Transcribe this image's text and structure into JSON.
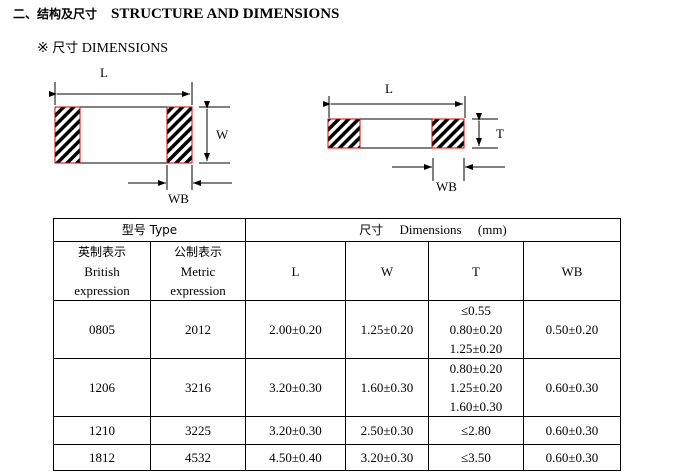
{
  "heading": {
    "zh": "二、结构及尺寸",
    "en": "STRUCTURE AND DIMENSIONS"
  },
  "subheading": {
    "mark": "※",
    "zh": "尺寸",
    "en": "DIMENSIONS"
  },
  "diagram_top": {
    "L": "L",
    "W": "W",
    "WB": "WB"
  },
  "diagram_side": {
    "L": "L",
    "T": "T",
    "WB": "WB"
  },
  "table": {
    "type_header": "型号 Type",
    "dim_header": {
      "zh": "尺寸",
      "en": "Dimensions",
      "unit": "(mm)"
    },
    "british": {
      "zh": "英制表示",
      "en1": "British",
      "en2": "expression"
    },
    "metric": {
      "zh": "公制表示",
      "en1": "Metric",
      "en2": "expression"
    },
    "cols": [
      "L",
      "W",
      "T",
      "WB"
    ],
    "rows": [
      {
        "british": "0805",
        "metric": "2012",
        "L": "2.00±0.20",
        "W": "1.25±0.20",
        "T": [
          "≤0.55",
          "0.80±0.20",
          "1.25±0.20"
        ],
        "WB": "0.50±0.20"
      },
      {
        "british": "1206",
        "metric": "3216",
        "L": "3.20±0.30",
        "W": "1.60±0.30",
        "T": [
          "0.80±0.20",
          "1.25±0.20",
          "1.60±0.30"
        ],
        "WB": "0.60±0.30"
      },
      {
        "british": "1210",
        "metric": "3225",
        "L": "3.20±0.30",
        "W": "2.50±0.30",
        "T": [
          "≤2.80"
        ],
        "WB": "0.60±0.30"
      },
      {
        "british": "1812",
        "metric": "4532",
        "L": "4.50±0.40",
        "W": "3.20±0.30",
        "T": [
          "≤3.50"
        ],
        "WB": "0.60±0.30"
      }
    ]
  }
}
